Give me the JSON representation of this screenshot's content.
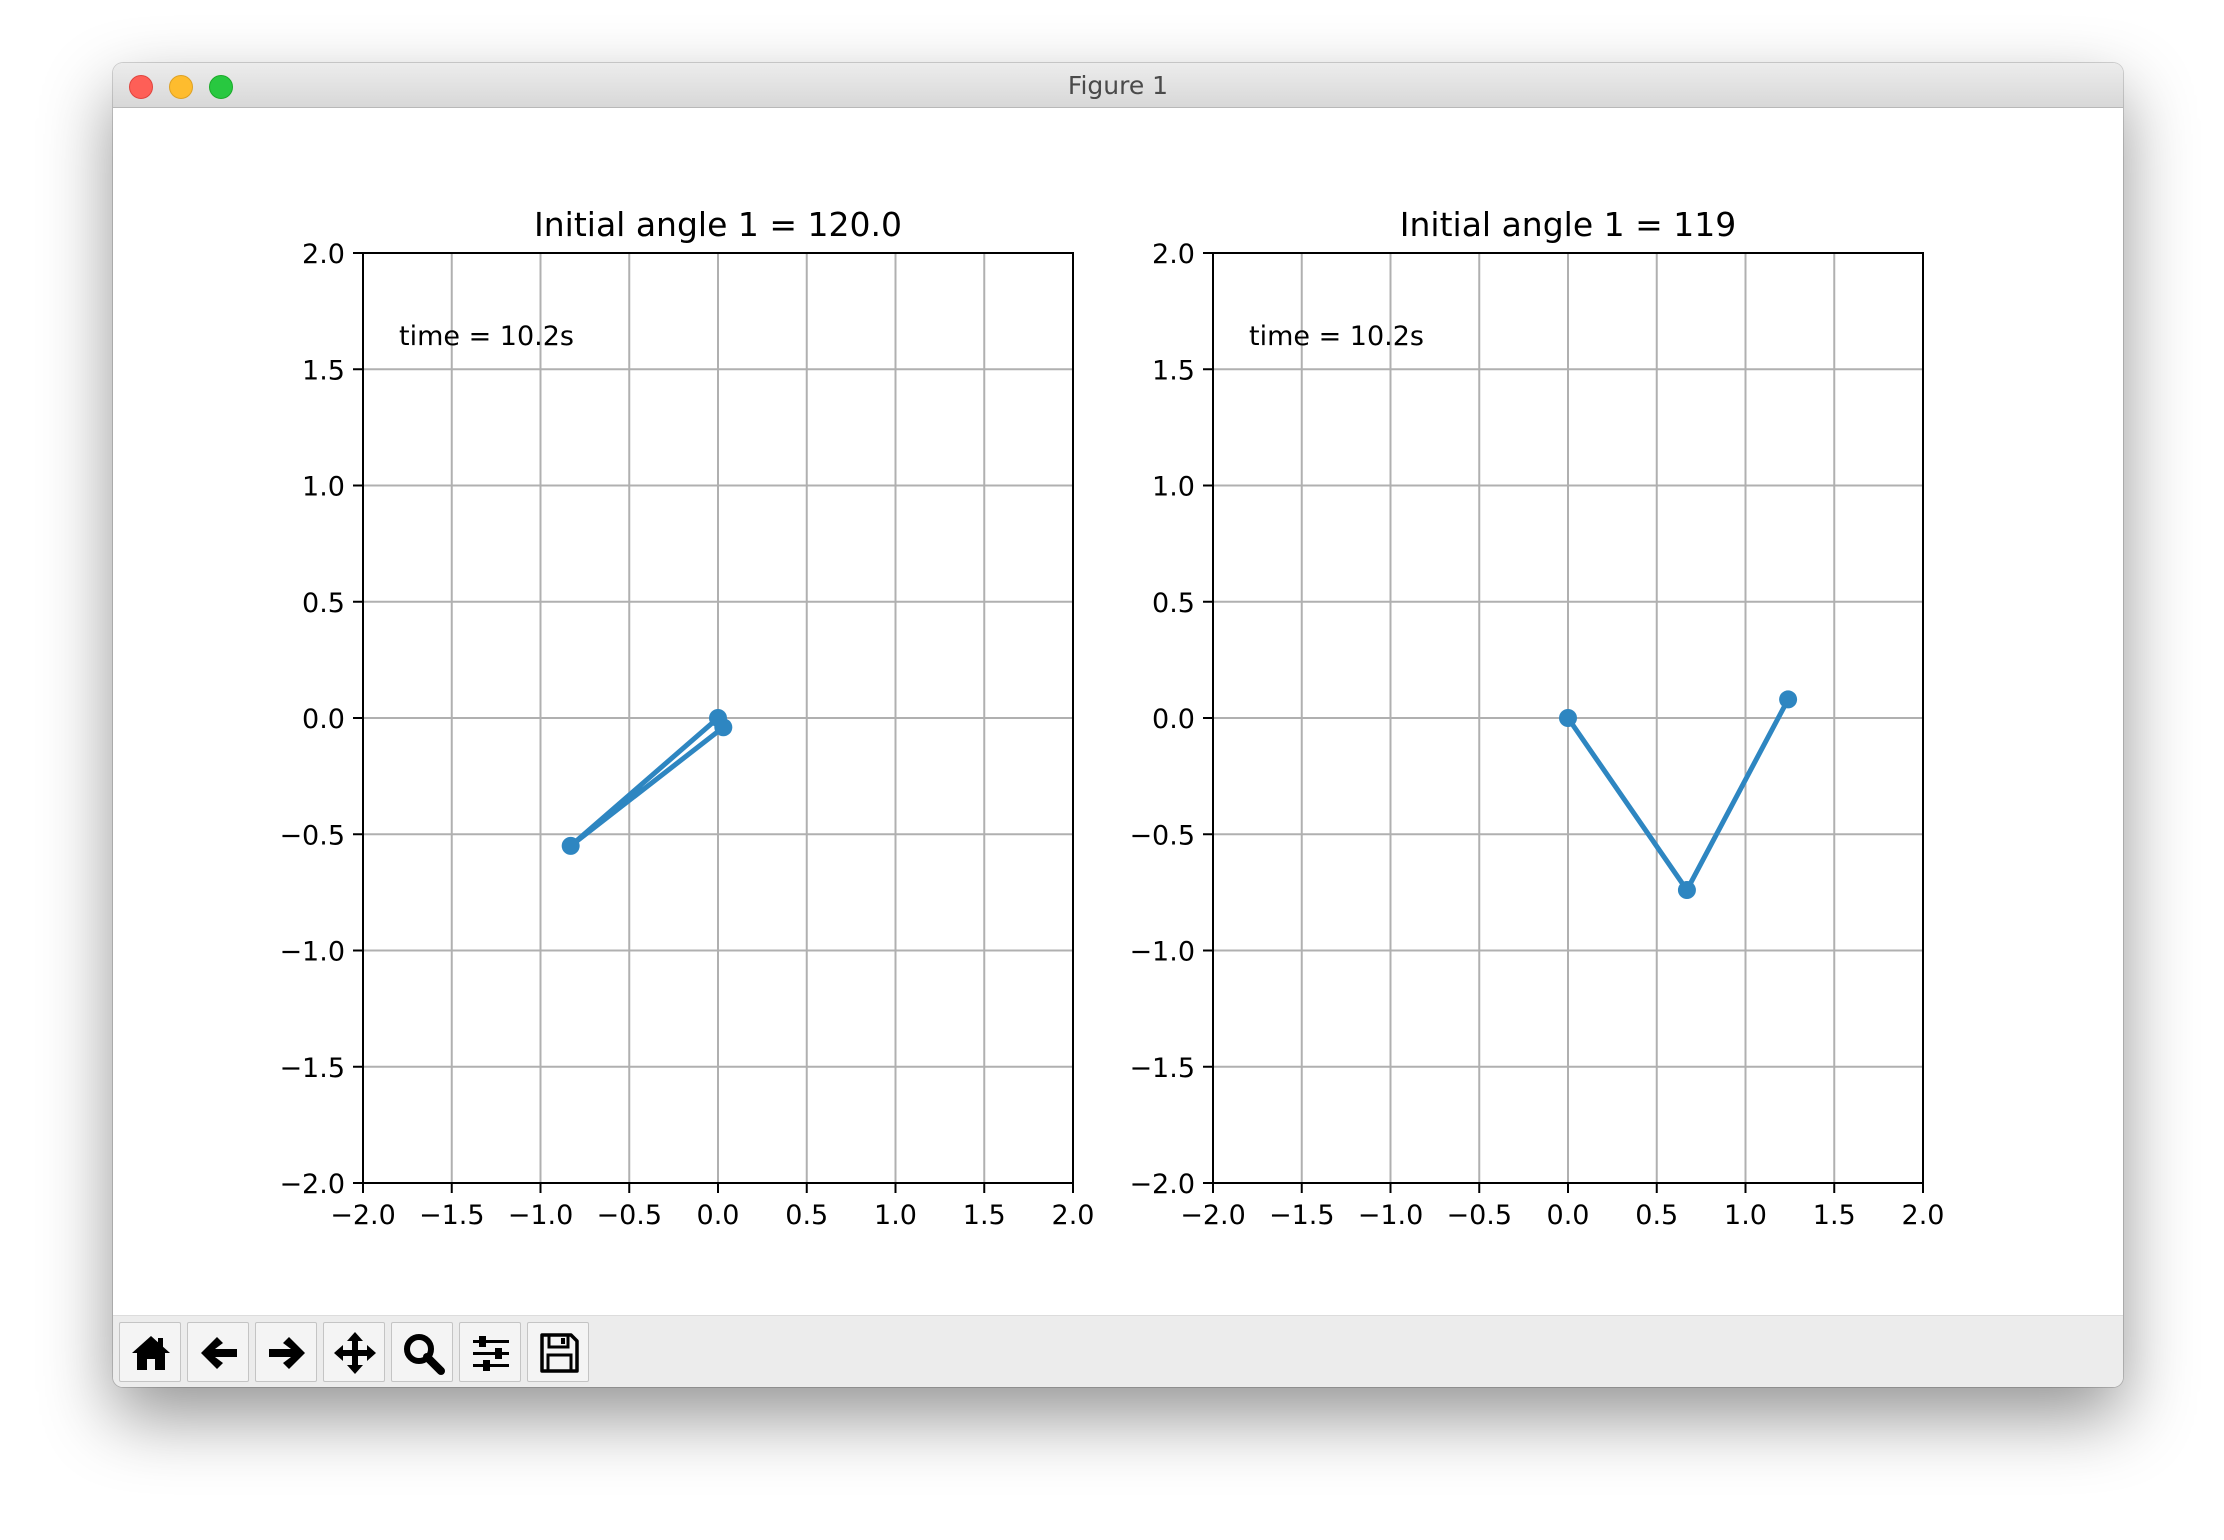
{
  "window": {
    "title": "Figure 1"
  },
  "toolbar": {
    "buttons": [
      {
        "name": "home-button",
        "icon": "home-icon"
      },
      {
        "name": "back-button",
        "icon": "arrow-left-icon"
      },
      {
        "name": "forward-button",
        "icon": "arrow-right-icon"
      },
      {
        "name": "pan-button",
        "icon": "move-icon"
      },
      {
        "name": "zoom-button",
        "icon": "magnifier-icon"
      },
      {
        "name": "configure-subplots-button",
        "icon": "sliders-icon"
      },
      {
        "name": "save-button",
        "icon": "floppy-disk-icon"
      }
    ]
  },
  "colors": {
    "line": "#2e86c1",
    "grid": "#b0b0b0"
  },
  "chart_data": [
    {
      "type": "line",
      "title": "Initial angle 1 = 120.0",
      "annotation": "time = 10.2s",
      "xlim": [
        -2.0,
        2.0
      ],
      "ylim": [
        -2.0,
        2.0
      ],
      "xticks": [
        "−2.0",
        "−1.5",
        "−1.0",
        "−0.5",
        "0.0",
        "0.5",
        "1.0",
        "1.5",
        "2.0"
      ],
      "yticks": [
        "−2.0",
        "−1.5",
        "−1.0",
        "−0.5",
        "0.0",
        "0.5",
        "1.0",
        "1.5",
        "2.0"
      ],
      "grid": true,
      "series": [
        {
          "x": [
            0.0,
            -0.83,
            0.03
          ],
          "y": [
            0.0,
            -0.55,
            -0.04
          ]
        }
      ]
    },
    {
      "type": "line",
      "title": "Initial angle 1 = 119",
      "annotation": "time = 10.2s",
      "xlim": [
        -2.0,
        2.0
      ],
      "ylim": [
        -2.0,
        2.0
      ],
      "xticks": [
        "−2.0",
        "−1.5",
        "−1.0",
        "−0.5",
        "0.0",
        "0.5",
        "1.0",
        "1.5",
        "2.0"
      ],
      "yticks": [
        "−2.0",
        "−1.5",
        "−1.0",
        "−0.5",
        "0.0",
        "0.5",
        "1.0",
        "1.5",
        "2.0"
      ],
      "grid": true,
      "series": [
        {
          "x": [
            0.0,
            0.67,
            1.24
          ],
          "y": [
            0.0,
            -0.74,
            0.08
          ]
        }
      ]
    }
  ]
}
